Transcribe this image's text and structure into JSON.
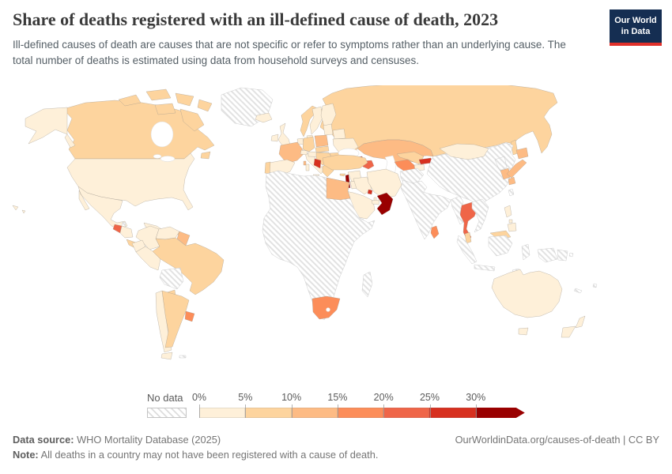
{
  "header": {
    "title": "Share of deaths registered with an ill-defined cause of death, 2023",
    "subtitle": "Ill-defined causes of death are causes that are not specific or refer to symptoms rather than an underlying cause. The total number of deaths is estimated using data from household surveys and censuses.",
    "logo": {
      "line1": "Our World",
      "line2": "in Data",
      "bg_color": "#152e52",
      "accent_color": "#e0302a"
    }
  },
  "legend": {
    "no_data_label": "No data",
    "tick_labels": [
      "0%",
      "5%",
      "10%",
      "15%",
      "20%",
      "25%",
      "30%"
    ],
    "colors": [
      "#fef0d9",
      "#fdd49e",
      "#fdbb84",
      "#fc8d59",
      "#ef6548",
      "#d7301f",
      "#990000"
    ]
  },
  "footer": {
    "data_source_label": "Data source:",
    "data_source": "WHO Mortality Database (2025)",
    "attribution": "OurWorldinData.org/causes-of-death | CC BY",
    "note_label": "Note:",
    "note": "All deaths in a country may not have been registered with a cause of death."
  },
  "chart_data": {
    "type": "choropleth",
    "title": "Share of deaths registered with an ill-defined cause of death",
    "year": "2023",
    "unit": "%",
    "bins": [
      "0-5%",
      "5-10%",
      "10-15%",
      "15-20%",
      "20-25%",
      "25-30%",
      "30%+",
      "No data"
    ],
    "bin_colors": {
      "0-5%": "#fef0d9",
      "5-10%": "#fdd49e",
      "10-15%": "#fdbb84",
      "15-20%": "#fc8d59",
      "20-25%": "#ef6548",
      "25-30%": "#d7301f",
      "30%+": "#990000"
    },
    "regions": [
      {
        "id": "greenland",
        "name": "Greenland",
        "bin": "No data"
      },
      {
        "id": "canada",
        "name": "Canada",
        "bin": "5-10%"
      },
      {
        "id": "usa",
        "name": "United States",
        "bin": "0-5%"
      },
      {
        "id": "mexico",
        "name": "Mexico",
        "bin": "0-5%"
      },
      {
        "id": "belize",
        "name": "Belize",
        "bin": "No data"
      },
      {
        "id": "guatemala",
        "name": "Guatemala",
        "bin": "20-25%"
      },
      {
        "id": "honduras-nicaragua",
        "name": "Honduras & Nicaragua",
        "bin": "0-5%"
      },
      {
        "id": "costa-rica-panama",
        "name": "Costa Rica & Panama",
        "bin": "5-10%"
      },
      {
        "id": "cuba",
        "name": "Cuba",
        "bin": "0-5%"
      },
      {
        "id": "jamaica",
        "name": "Jamaica",
        "bin": "0-5%"
      },
      {
        "id": "hispaniola",
        "name": "Dominican Republic & Haiti",
        "bin": "10-15%"
      },
      {
        "id": "puerto-rico",
        "name": "Puerto Rico",
        "bin": "5-10%"
      },
      {
        "id": "lesser-antilles",
        "name": "Lesser Antilles",
        "bin": "10-15%"
      },
      {
        "id": "colombia",
        "name": "Colombia",
        "bin": "0-5%"
      },
      {
        "id": "venezuela",
        "name": "Venezuela",
        "bin": "0-5%"
      },
      {
        "id": "guyana-suriname",
        "name": "Guyana & Suriname",
        "bin": "10-15%"
      },
      {
        "id": "ecuador",
        "name": "Ecuador",
        "bin": "0-5%"
      },
      {
        "id": "peru",
        "name": "Peru",
        "bin": "0-5%"
      },
      {
        "id": "brazil",
        "name": "Brazil",
        "bin": "5-10%"
      },
      {
        "id": "bolivia",
        "name": "Bolivia",
        "bin": "No data"
      },
      {
        "id": "paraguay",
        "name": "Paraguay",
        "bin": "5-10%"
      },
      {
        "id": "chile",
        "name": "Chile",
        "bin": "0-5%"
      },
      {
        "id": "argentina",
        "name": "Argentina",
        "bin": "5-10%"
      },
      {
        "id": "uruguay",
        "name": "Uruguay",
        "bin": "15-20%"
      },
      {
        "id": "falkland-islands",
        "name": "Falkland Islands",
        "bin": "No data"
      },
      {
        "id": "iceland",
        "name": "Iceland",
        "bin": "0-5%"
      },
      {
        "id": "ireland",
        "name": "Ireland",
        "bin": "0-5%"
      },
      {
        "id": "united-kingdom",
        "name": "United Kingdom",
        "bin": "0-5%"
      },
      {
        "id": "norway",
        "name": "Norway",
        "bin": "5-10%"
      },
      {
        "id": "sweden",
        "name": "Sweden",
        "bin": "0-5%"
      },
      {
        "id": "finland",
        "name": "Finland",
        "bin": "0-5%"
      },
      {
        "id": "denmark",
        "name": "Denmark",
        "bin": "0-5%"
      },
      {
        "id": "benelux",
        "name": "Netherlands & Belgium",
        "bin": "0-5%"
      },
      {
        "id": "germany",
        "name": "Germany",
        "bin": "5-10%"
      },
      {
        "id": "poland",
        "name": "Poland",
        "bin": "10-15%"
      },
      {
        "id": "czech-slovakia",
        "name": "Czechia & Slovakia",
        "bin": "5-10%"
      },
      {
        "id": "france",
        "name": "France",
        "bin": "10-15%"
      },
      {
        "id": "spain",
        "name": "Spain",
        "bin": "0-5%"
      },
      {
        "id": "portugal",
        "name": "Portugal",
        "bin": "5-10%"
      },
      {
        "id": "italy",
        "name": "Italy",
        "bin": "0-5%"
      },
      {
        "id": "switzerland",
        "name": "Switzerland",
        "bin": "0-5%"
      },
      {
        "id": "austria-hungary",
        "name": "Austria & Hungary",
        "bin": "0-5%"
      },
      {
        "id": "baltics",
        "name": "Baltic states",
        "bin": "0-5%"
      },
      {
        "id": "belarus",
        "name": "Belarus",
        "bin": "0-5%"
      },
      {
        "id": "ukraine",
        "name": "Ukraine",
        "bin": "0-5%"
      },
      {
        "id": "romania",
        "name": "Romania",
        "bin": "5-10%"
      },
      {
        "id": "balkans",
        "name": "Western Balkans",
        "bin": "5-10%"
      },
      {
        "id": "albania-montenegro",
        "name": "Albania & Montenegro",
        "bin": "25-30%"
      },
      {
        "id": "greece",
        "name": "Greece",
        "bin": "5-10%"
      },
      {
        "id": "bulgaria",
        "name": "Bulgaria",
        "bin": "5-10%"
      },
      {
        "id": "russia",
        "name": "Russia",
        "bin": "5-10%"
      },
      {
        "id": "kazakhstan",
        "name": "Kazakhstan",
        "bin": "10-15%"
      },
      {
        "id": "georgia",
        "name": "Georgia",
        "bin": "25-30%"
      },
      {
        "id": "armenia",
        "name": "Armenia",
        "bin": "0-5%"
      },
      {
        "id": "azerbaijan",
        "name": "Azerbaijan",
        "bin": "20-25%"
      },
      {
        "id": "turkey",
        "name": "Turkey",
        "bin": "5-10%"
      },
      {
        "id": "cyprus",
        "name": "Cyprus",
        "bin": "5-10%"
      },
      {
        "id": "syria",
        "name": "Syria",
        "bin": "0-5%"
      },
      {
        "id": "lebanon-israel",
        "name": "Lebanon & Israel",
        "bin": "30%+"
      },
      {
        "id": "jordan",
        "name": "Jordan",
        "bin": "0-5%"
      },
      {
        "id": "iraq",
        "name": "Iraq",
        "bin": "0-5%"
      },
      {
        "id": "iran",
        "name": "Iran",
        "bin": "0-5%"
      },
      {
        "id": "turkmenistan",
        "name": "Turkmenistan",
        "bin": "15-20%"
      },
      {
        "id": "uzbekistan",
        "name": "Uzbekistan",
        "bin": "5-10%"
      },
      {
        "id": "kyrgyzstan",
        "name": "Kyrgyzstan",
        "bin": "25-30%"
      },
      {
        "id": "tajikistan",
        "name": "Tajikistan",
        "bin": "0-5%"
      },
      {
        "id": "afghanistan",
        "name": "Afghanistan",
        "bin": "No data"
      },
      {
        "id": "pakistan",
        "name": "Pakistan",
        "bin": "No data"
      },
      {
        "id": "saudi-arabia",
        "name": "Saudi Arabia",
        "bin": "0-5%"
      },
      {
        "id": "kuwait",
        "name": "Kuwait",
        "bin": "25-30%"
      },
      {
        "id": "qatar",
        "name": "Qatar",
        "bin": "0-5%"
      },
      {
        "id": "uae",
        "name": "United Arab Emirates",
        "bin": "0-5%"
      },
      {
        "id": "oman",
        "name": "Oman",
        "bin": "30%+"
      },
      {
        "id": "yemen",
        "name": "Yemen",
        "bin": "No data"
      },
      {
        "id": "africa",
        "name": "Africa (most countries)",
        "bin": "No data"
      },
      {
        "id": "egypt",
        "name": "Egypt",
        "bin": "10-15%"
      },
      {
        "id": "south-africa",
        "name": "South Africa",
        "bin": "15-20%"
      },
      {
        "id": "madagascar",
        "name": "Madagascar",
        "bin": "No data"
      },
      {
        "id": "china",
        "name": "China",
        "bin": "No data"
      },
      {
        "id": "mongolia",
        "name": "Mongolia",
        "bin": "0-5%"
      },
      {
        "id": "north-korea",
        "name": "North Korea",
        "bin": "No data"
      },
      {
        "id": "south-korea",
        "name": "South Korea",
        "bin": "10-15%"
      },
      {
        "id": "japan",
        "name": "Japan",
        "bin": "10-15%"
      },
      {
        "id": "taiwan",
        "name": "Taiwan",
        "bin": "No data"
      },
      {
        "id": "india",
        "name": "India",
        "bin": "No data"
      },
      {
        "id": "sri-lanka",
        "name": "Sri Lanka",
        "bin": "15-20%"
      },
      {
        "id": "myanmar",
        "name": "Myanmar",
        "bin": "No data"
      },
      {
        "id": "thailand",
        "name": "Thailand",
        "bin": "20-25%"
      },
      {
        "id": "indochina",
        "name": "Laos, Cambodia & Vietnam",
        "bin": "No data"
      },
      {
        "id": "malaysia",
        "name": "Malaysia",
        "bin": "5-10%"
      },
      {
        "id": "philippines",
        "name": "Philippines",
        "bin": "0-5%"
      },
      {
        "id": "indonesia",
        "name": "Indonesia",
        "bin": "No data"
      },
      {
        "id": "papua-new-guinea",
        "name": "Papua New Guinea",
        "bin": "No data"
      },
      {
        "id": "timor",
        "name": "Timor-Leste",
        "bin": "No data"
      },
      {
        "id": "australia",
        "name": "Australia",
        "bin": "0-5%"
      },
      {
        "id": "new-zealand",
        "name": "New Zealand",
        "bin": "0-5%"
      },
      {
        "id": "new-caledonia",
        "name": "New Caledonia",
        "bin": "No data"
      },
      {
        "id": "fiji",
        "name": "Fiji",
        "bin": "No data"
      }
    ]
  }
}
